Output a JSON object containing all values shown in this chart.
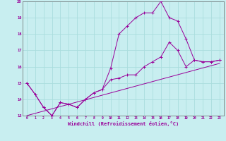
{
  "title": "",
  "xlabel": "Windchill (Refroidissement éolien,°C)",
  "ylabel": "",
  "bg_color": "#c8eef0",
  "grid_color": "#aadddd",
  "line_color": "#990099",
  "xlim": [
    -0.5,
    23.5
  ],
  "ylim": [
    13,
    20
  ],
  "xticks": [
    0,
    1,
    2,
    3,
    4,
    5,
    6,
    7,
    8,
    9,
    10,
    11,
    12,
    13,
    14,
    15,
    16,
    17,
    18,
    19,
    20,
    21,
    22,
    23
  ],
  "yticks": [
    13,
    14,
    15,
    16,
    17,
    18,
    19,
    20
  ],
  "series": [
    {
      "x": [
        0,
        1,
        2,
        3,
        4,
        5,
        6,
        7,
        8,
        9,
        10,
        11,
        12,
        13,
        14,
        15,
        16,
        17,
        18,
        19,
        20,
        21,
        22,
        23
      ],
      "y": [
        15.0,
        14.3,
        13.5,
        13.0,
        13.8,
        13.7,
        13.5,
        14.0,
        14.4,
        14.6,
        15.9,
        18.0,
        18.5,
        19.0,
        19.3,
        19.3,
        20.0,
        19.0,
        18.8,
        17.7,
        16.4,
        16.3,
        16.3,
        16.4
      ]
    },
    {
      "x": [
        0,
        1,
        2,
        3,
        4,
        5,
        6,
        7,
        8,
        9,
        10,
        11,
        12,
        13,
        14,
        15,
        16,
        17,
        18,
        19,
        20,
        21,
        22,
        23
      ],
      "y": [
        15.0,
        14.3,
        13.5,
        13.0,
        13.8,
        13.7,
        13.5,
        14.0,
        14.4,
        14.6,
        15.2,
        15.3,
        15.5,
        15.5,
        16.0,
        16.3,
        16.6,
        17.5,
        17.0,
        16.0,
        16.4,
        16.3,
        16.3,
        16.4
      ]
    },
    {
      "x": [
        0,
        23
      ],
      "y": [
        13.0,
        16.2
      ]
    }
  ]
}
